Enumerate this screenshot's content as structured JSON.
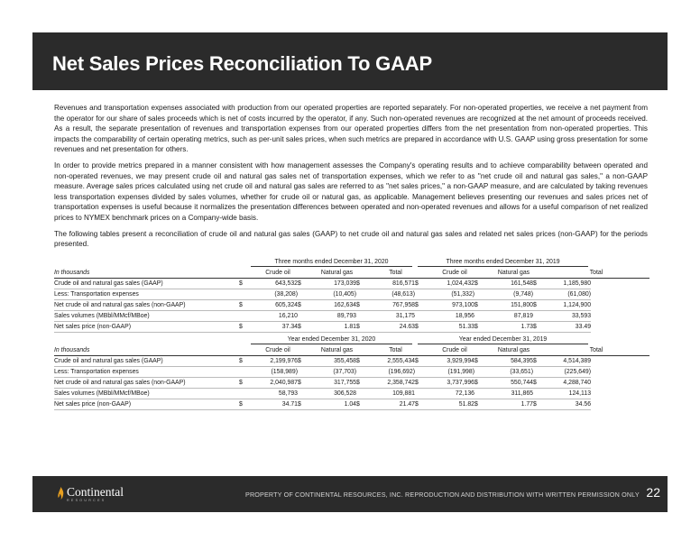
{
  "title": "Net Sales Prices Reconciliation To GAAP",
  "paragraphs": [
    "Revenues and transportation expenses associated with production from our operated properties are reported separately. For non-operated properties, we receive a net payment from the operator for our share of sales proceeds which is net of costs incurred by the operator, if any. Such non-operated revenues are recognized at the net amount of proceeds received. As a result, the separate presentation of revenues and transportation expenses from our operated properties differs from the net presentation from non-operated properties. This impacts the comparability of certain operating metrics, such as per-unit sales prices, when such metrics are prepared in accordance with U.S. GAAP using gross presentation for some revenues and net presentation for others.",
    "In order to provide metrics prepared in a manner consistent with how management assesses the Company's operating results and to achieve comparability between operated and non-operated revenues, we may present crude oil and natural gas sales net of transportation expenses, which we refer to as \"net crude oil and natural gas sales,\" a non-GAAP measure. Average sales prices calculated using net crude oil and natural gas sales are referred to as \"net sales prices,\" a non-GAAP measure, and are calculated by taking revenues less transportation expenses divided by sales volumes, whether for crude oil or natural gas, as applicable. Management believes presenting our revenues and sales prices net of transportation expenses is useful because it normalizes the presentation differences between operated and non-operated revenues and allows for a useful comparison of net realized prices to NYMEX benchmark prices on a Company-wide basis.",
    "The following tables present a reconciliation of crude oil and natural gas sales (GAAP) to net crude oil and natural gas sales and related net sales prices (non-GAAP) for the periods presented."
  ],
  "tables": [
    {
      "period1": "Three months ended December 31, 2020",
      "period2": "Three months ended December 31, 2019",
      "unit_label": "In thousands",
      "columns": [
        "Crude oil",
        "Natural gas",
        "Total",
        "Crude oil",
        "Natural gas",
        "Total"
      ],
      "rows": [
        {
          "label": "Crude oil and natural gas sales (GAAP)",
          "dollar": true,
          "values": [
            "643,532",
            "173,039",
            "816,571",
            "1,024,432",
            "161,548",
            "1,185,980"
          ]
        },
        {
          "label": "Less: Transportation expenses",
          "dollar": false,
          "values": [
            "(38,208)",
            "(10,405)",
            "(48,613)",
            "(51,332)",
            "(9,748)",
            "(61,080)"
          ]
        },
        {
          "label": "Net crude oil and natural gas sales (non-GAAP)",
          "dollar": true,
          "values": [
            "605,324",
            "162,634",
            "767,958",
            "973,100",
            "151,800",
            "1,124,900"
          ]
        },
        {
          "label": "Sales volumes (MBbl/MMcf/MBoe)",
          "dollar": false,
          "values": [
            "16,210",
            "89,793",
            "31,175",
            "18,956",
            "87,819",
            "33,593"
          ]
        },
        {
          "label": "Net sales price (non-GAAP)",
          "dollar": true,
          "values": [
            "37.34",
            "1.81",
            "24.63",
            "51.33",
            "1.73",
            "33.49"
          ]
        }
      ]
    },
    {
      "period1": "Year ended December 31, 2020",
      "period2": "Year ended December 31, 2019",
      "unit_label": "In thousands",
      "columns": [
        "Crude oil",
        "Natural gas",
        "Total",
        "Crude oil",
        "Natural gas",
        "Total"
      ],
      "rows": [
        {
          "label": "Crude oil and natural gas sales (GAAP)",
          "dollar": true,
          "values": [
            "2,199,976",
            "355,458",
            "2,555,434",
            "3,929,994",
            "584,395",
            "4,514,389"
          ]
        },
        {
          "label": "Less: Transportation expenses",
          "dollar": false,
          "values": [
            "(158,989)",
            "(37,703)",
            "(196,692)",
            "(191,998)",
            "(33,651)",
            "(225,649)"
          ]
        },
        {
          "label": "Net crude oil and natural gas sales (non-GAAP)",
          "dollar": true,
          "values": [
            "2,040,987",
            "317,755",
            "2,358,742",
            "3,737,996",
            "550,744",
            "4,288,740"
          ]
        },
        {
          "label": "Sales volumes (MBbl/MMcf/MBoe)",
          "dollar": false,
          "values": [
            "58,793",
            "306,528",
            "109,881",
            "72,136",
            "311,865",
            "124,113"
          ]
        },
        {
          "label": "Net sales price (non-GAAP)",
          "dollar": true,
          "values": [
            "34.71",
            "1.04",
            "21.47",
            "51.82",
            "1.77",
            "34.56"
          ]
        }
      ]
    }
  ],
  "currency_symbol": "$",
  "footer": {
    "logo_name": "Continental",
    "logo_sub": "RESOURCES",
    "notice": "PROPERTY OF CONTINENTAL RESOURCES, INC. REPRODUCTION AND DISTRIBUTION WITH WRITTEN PERMISSION ONLY",
    "page_number": "22"
  },
  "colors": {
    "banner": "#2b2b2b",
    "logo_flame": "#e8a020"
  }
}
